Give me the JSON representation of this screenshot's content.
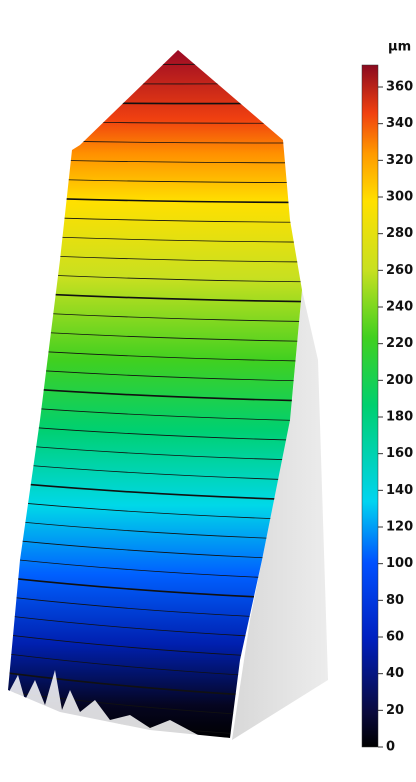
{
  "colorbar": {
    "unit": "µm",
    "lim": [
      0,
      372
    ],
    "ticks": [
      0,
      20,
      40,
      60,
      80,
      100,
      120,
      140,
      160,
      180,
      200,
      220,
      240,
      260,
      280,
      300,
      320,
      340,
      360
    ]
  }
}
